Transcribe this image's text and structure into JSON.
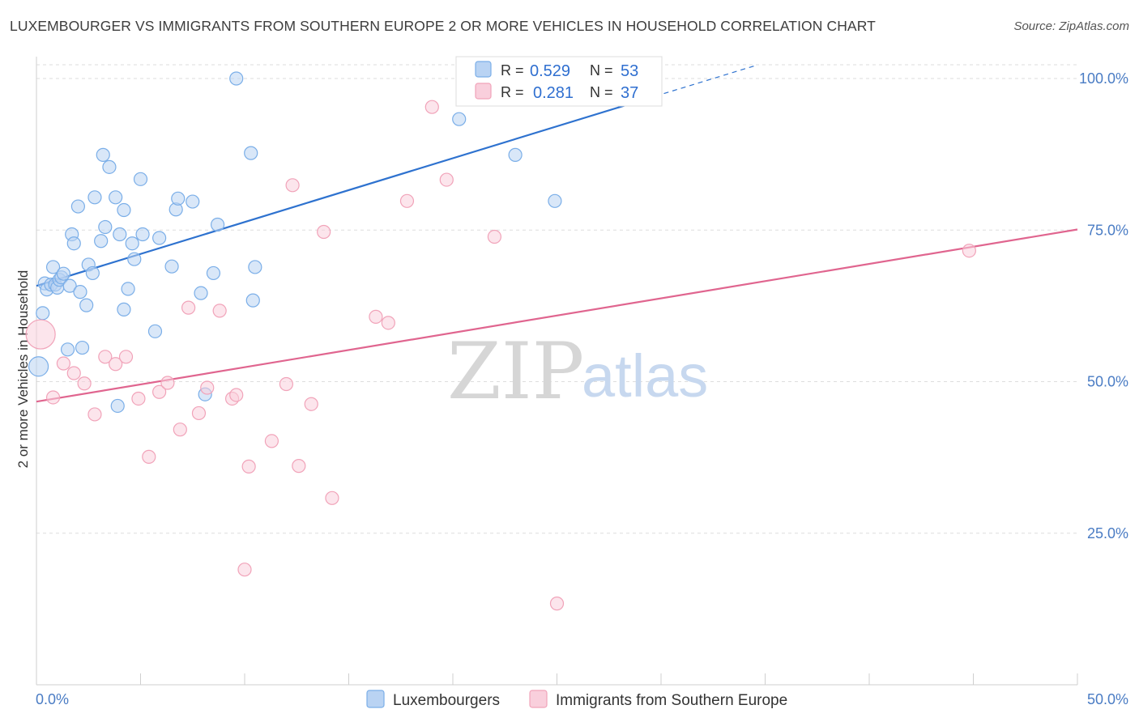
{
  "title": "LUXEMBOURGER VS IMMIGRANTS FROM SOUTHERN EUROPE 2 OR MORE VEHICLES IN HOUSEHOLD CORRELATION CHART",
  "source": "Source: ZipAtlas.com",
  "watermark": {
    "zip": "ZIP",
    "atlas": "atlas"
  },
  "legend_box": {
    "rows": [
      {
        "r_label": "R =",
        "r_value": "0.529",
        "n_label": "N =",
        "n_value": "53"
      },
      {
        "r_label": "R =",
        "r_value": "0.281",
        "n_label": "N =",
        "n_value": "37"
      }
    ]
  },
  "chart_data": {
    "type": "scatter",
    "title": "LUXEMBOURGER VS IMMIGRANTS FROM SOUTHERN EUROPE 2 OR MORE VEHICLES IN HOUSEHOLD CORRELATION CHART",
    "xlabel": "",
    "ylabel": "2 or more Vehicles in Household",
    "xlim": [
      0,
      50
    ],
    "ylim": [
      0,
      101
    ],
    "x_tick_labels": {
      "left": "0.0%",
      "right": "50.0%"
    },
    "y_ticks": [
      {
        "value": 25,
        "label": "25.0%"
      },
      {
        "value": 50,
        "label": "50.0%"
      },
      {
        "value": 75,
        "label": "75.0%"
      },
      {
        "value": 100,
        "label": "100.0%"
      }
    ],
    "grid": true,
    "series": [
      {
        "name": "Luxembourgers",
        "color": "#7aaee8",
        "fill": "#b9d3f3",
        "line_color": "#2e72cf",
        "R": 0.529,
        "N": 53,
        "trend": {
          "x0": 0,
          "y0": 65.8,
          "x1": 28.5,
          "y1": 95.8,
          "dash_x1": 34.5,
          "dash_y1": 102.1
        },
        "points": [
          [
            0.1,
            52.5,
            24
          ],
          [
            0.3,
            61.3,
            16
          ],
          [
            0.4,
            66.2,
            16
          ],
          [
            0.5,
            65.2,
            16
          ],
          [
            0.7,
            66.0,
            16
          ],
          [
            0.8,
            68.9,
            16
          ],
          [
            0.9,
            66.0,
            16
          ],
          [
            1.0,
            65.5,
            16
          ],
          [
            1.1,
            66.8,
            16
          ],
          [
            1.2,
            67.2,
            16
          ],
          [
            1.3,
            67.8,
            16
          ],
          [
            1.5,
            55.3,
            16
          ],
          [
            1.6,
            65.8,
            16
          ],
          [
            1.7,
            74.3,
            16
          ],
          [
            1.8,
            72.8,
            16
          ],
          [
            2.0,
            78.9,
            16
          ],
          [
            2.1,
            64.8,
            16
          ],
          [
            2.2,
            55.6,
            16
          ],
          [
            2.4,
            62.6,
            16
          ],
          [
            2.5,
            69.3,
            16
          ],
          [
            2.7,
            67.9,
            16
          ],
          [
            2.8,
            80.4,
            16
          ],
          [
            3.1,
            73.2,
            16
          ],
          [
            3.2,
            87.4,
            16
          ],
          [
            3.3,
            75.5,
            16
          ],
          [
            3.5,
            85.4,
            16
          ],
          [
            3.8,
            80.4,
            16
          ],
          [
            3.9,
            46.0,
            16
          ],
          [
            4.0,
            74.3,
            16
          ],
          [
            4.2,
            78.3,
            16
          ],
          [
            4.2,
            61.9,
            16
          ],
          [
            4.4,
            65.3,
            16
          ],
          [
            4.6,
            72.8,
            16
          ],
          [
            4.7,
            70.2,
            16
          ],
          [
            5.0,
            83.4,
            16
          ],
          [
            5.1,
            74.3,
            16
          ],
          [
            5.7,
            58.3,
            16
          ],
          [
            5.9,
            73.7,
            16
          ],
          [
            6.5,
            69.0,
            16
          ],
          [
            6.7,
            78.4,
            16
          ],
          [
            6.8,
            80.2,
            16
          ],
          [
            7.5,
            79.7,
            16
          ],
          [
            7.9,
            64.6,
            16
          ],
          [
            8.1,
            47.9,
            16
          ],
          [
            8.5,
            67.9,
            16
          ],
          [
            8.7,
            75.9,
            16
          ],
          [
            9.6,
            100.0,
            16
          ],
          [
            10.3,
            87.7,
            16
          ],
          [
            10.4,
            63.4,
            16
          ],
          [
            10.5,
            68.9,
            16
          ],
          [
            20.3,
            93.3,
            16
          ],
          [
            23.0,
            87.4,
            16
          ],
          [
            24.9,
            79.8,
            16
          ]
        ]
      },
      {
        "name": "Immigrants from Southern Europe",
        "color": "#f1a3b9",
        "fill": "#f9cfdc",
        "line_color": "#e0658f",
        "R": 0.281,
        "N": 37,
        "trend": {
          "x0": 0,
          "y0": 46.7,
          "x1": 50,
          "y1": 75.1
        },
        "points": [
          [
            0.2,
            57.8,
            36
          ],
          [
            0.8,
            47.4,
            16
          ],
          [
            1.3,
            53.0,
            16
          ],
          [
            1.8,
            51.4,
            16
          ],
          [
            2.3,
            49.7,
            16
          ],
          [
            2.8,
            44.6,
            16
          ],
          [
            3.3,
            54.1,
            16
          ],
          [
            3.8,
            52.9,
            16
          ],
          [
            4.3,
            54.1,
            16
          ],
          [
            4.9,
            47.2,
            16
          ],
          [
            5.4,
            37.6,
            16
          ],
          [
            5.9,
            48.3,
            16
          ],
          [
            6.3,
            49.8,
            16
          ],
          [
            6.9,
            42.1,
            16
          ],
          [
            7.3,
            62.2,
            16
          ],
          [
            7.8,
            44.8,
            16
          ],
          [
            8.2,
            49.0,
            16
          ],
          [
            8.8,
            61.7,
            16
          ],
          [
            9.4,
            47.2,
            16
          ],
          [
            9.6,
            47.8,
            16
          ],
          [
            10.0,
            19.0,
            16
          ],
          [
            10.2,
            36.0,
            16
          ],
          [
            11.3,
            40.2,
            16
          ],
          [
            12.0,
            49.6,
            16
          ],
          [
            12.3,
            82.4,
            16
          ],
          [
            12.6,
            36.1,
            16
          ],
          [
            13.2,
            46.3,
            16
          ],
          [
            13.8,
            74.7,
            16
          ],
          [
            14.2,
            30.8,
            16
          ],
          [
            16.3,
            60.7,
            16
          ],
          [
            16.9,
            59.7,
            16
          ],
          [
            17.8,
            79.8,
            16
          ],
          [
            19.0,
            95.3,
            16
          ],
          [
            19.7,
            83.3,
            16
          ],
          [
            22.0,
            73.9,
            16
          ],
          [
            25.0,
            13.4,
            16
          ],
          [
            44.8,
            71.6,
            16
          ]
        ]
      }
    ]
  }
}
